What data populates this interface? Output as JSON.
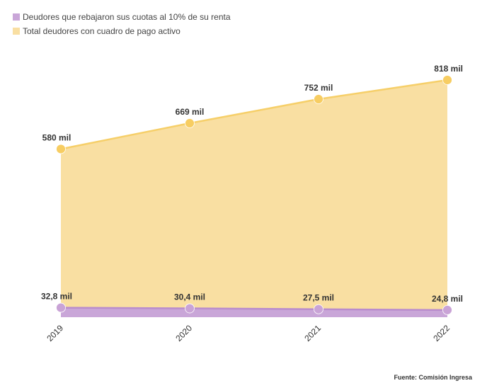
{
  "chart_data": {
    "type": "area",
    "title": "",
    "xlabel": "",
    "ylabel": "",
    "x": [
      "2019",
      "2020",
      "2021",
      "2022"
    ],
    "ylim": [
      0,
      818
    ],
    "grid": false,
    "legend_position": "top-left",
    "series": [
      {
        "name": "Deudores que rebajaron sus cuotas al 10% de su renta",
        "values": [
          32.8,
          30.4,
          27.5,
          24.8
        ],
        "labels": [
          "32,8 mil",
          "30,4 mil",
          "27,5 mil",
          "24,8 mil"
        ],
        "color": "#c9a6d8",
        "line_color": "#b98ccd",
        "point_color": "#c9a3d6"
      },
      {
        "name": "Total deudores con cuadro de pago activo",
        "values": [
          580,
          669,
          752,
          818
        ],
        "labels": [
          "580 mil",
          "669 mil",
          "752 mil",
          "818 mil"
        ],
        "color": "#f9dfa2",
        "line_color": "#f6cf69",
        "point_color": "#f7cd62"
      }
    ]
  },
  "source": "Fuente: Comisión Ingresa"
}
